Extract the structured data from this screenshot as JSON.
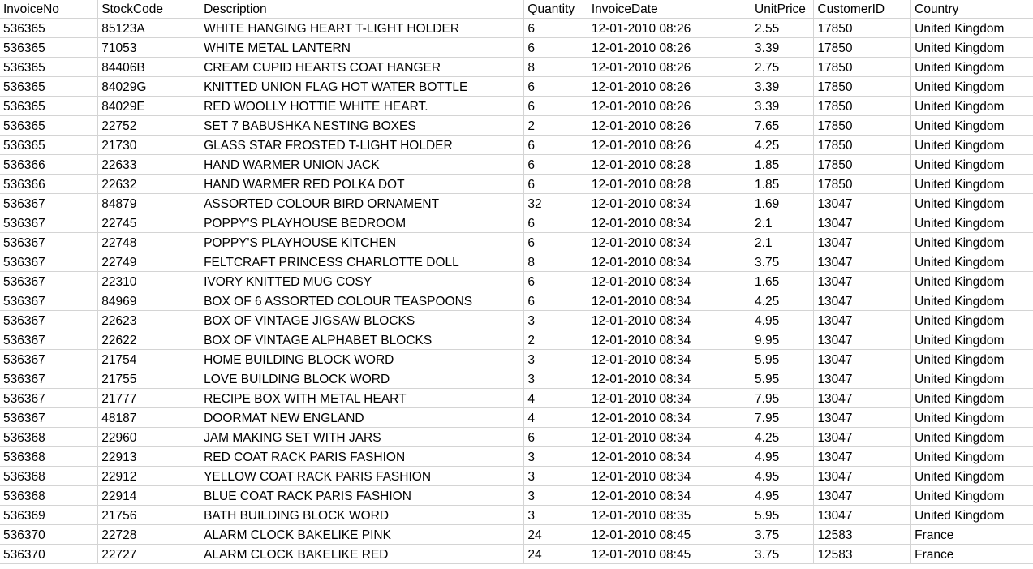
{
  "columns": [
    "InvoiceNo",
    "StockCode",
    "Description",
    "Quantity",
    "InvoiceDate",
    "UnitPrice",
    "CustomerID",
    "Country"
  ],
  "rows": [
    [
      "536365",
      "85123A",
      "WHITE HANGING HEART T-LIGHT HOLDER",
      "6",
      "12-01-2010 08:26",
      "2.55",
      "17850",
      "United Kingdom"
    ],
    [
      "536365",
      "71053",
      "WHITE METAL LANTERN",
      "6",
      "12-01-2010 08:26",
      "3.39",
      "17850",
      "United Kingdom"
    ],
    [
      "536365",
      "84406B",
      "CREAM CUPID HEARTS COAT HANGER",
      "8",
      "12-01-2010 08:26",
      "2.75",
      "17850",
      "United Kingdom"
    ],
    [
      "536365",
      "84029G",
      "KNITTED UNION FLAG HOT WATER BOTTLE",
      "6",
      "12-01-2010 08:26",
      "3.39",
      "17850",
      "United Kingdom"
    ],
    [
      "536365",
      "84029E",
      "RED WOOLLY HOTTIE WHITE HEART.",
      "6",
      "12-01-2010 08:26",
      "3.39",
      "17850",
      "United Kingdom"
    ],
    [
      "536365",
      "22752",
      "SET 7 BABUSHKA NESTING BOXES",
      "2",
      "12-01-2010 08:26",
      "7.65",
      "17850",
      "United Kingdom"
    ],
    [
      "536365",
      "21730",
      "GLASS STAR FROSTED T-LIGHT HOLDER",
      "6",
      "12-01-2010 08:26",
      "4.25",
      "17850",
      "United Kingdom"
    ],
    [
      "536366",
      "22633",
      "HAND WARMER UNION JACK",
      "6",
      "12-01-2010 08:28",
      "1.85",
      "17850",
      "United Kingdom"
    ],
    [
      "536366",
      "22632",
      "HAND WARMER RED POLKA DOT",
      "6",
      "12-01-2010 08:28",
      "1.85",
      "17850",
      "United Kingdom"
    ],
    [
      "536367",
      "84879",
      "ASSORTED COLOUR BIRD ORNAMENT",
      "32",
      "12-01-2010 08:34",
      "1.69",
      "13047",
      "United Kingdom"
    ],
    [
      "536367",
      "22745",
      "POPPY'S PLAYHOUSE BEDROOM",
      "6",
      "12-01-2010 08:34",
      "2.1",
      "13047",
      "United Kingdom"
    ],
    [
      "536367",
      "22748",
      "POPPY'S PLAYHOUSE KITCHEN",
      "6",
      "12-01-2010 08:34",
      "2.1",
      "13047",
      "United Kingdom"
    ],
    [
      "536367",
      "22749",
      "FELTCRAFT PRINCESS CHARLOTTE DOLL",
      "8",
      "12-01-2010 08:34",
      "3.75",
      "13047",
      "United Kingdom"
    ],
    [
      "536367",
      "22310",
      "IVORY KNITTED MUG COSY",
      "6",
      "12-01-2010 08:34",
      "1.65",
      "13047",
      "United Kingdom"
    ],
    [
      "536367",
      "84969",
      "BOX OF 6 ASSORTED COLOUR TEASPOONS",
      "6",
      "12-01-2010 08:34",
      "4.25",
      "13047",
      "United Kingdom"
    ],
    [
      "536367",
      "22623",
      "BOX OF VINTAGE JIGSAW BLOCKS",
      "3",
      "12-01-2010 08:34",
      "4.95",
      "13047",
      "United Kingdom"
    ],
    [
      "536367",
      "22622",
      "BOX OF VINTAGE ALPHABET BLOCKS",
      "2",
      "12-01-2010 08:34",
      "9.95",
      "13047",
      "United Kingdom"
    ],
    [
      "536367",
      "21754",
      "HOME BUILDING BLOCK WORD",
      "3",
      "12-01-2010 08:34",
      "5.95",
      "13047",
      "United Kingdom"
    ],
    [
      "536367",
      "21755",
      "LOVE BUILDING BLOCK WORD",
      "3",
      "12-01-2010 08:34",
      "5.95",
      "13047",
      "United Kingdom"
    ],
    [
      "536367",
      "21777",
      "RECIPE BOX WITH METAL HEART",
      "4",
      "12-01-2010 08:34",
      "7.95",
      "13047",
      "United Kingdom"
    ],
    [
      "536367",
      "48187",
      "DOORMAT NEW ENGLAND",
      "4",
      "12-01-2010 08:34",
      "7.95",
      "13047",
      "United Kingdom"
    ],
    [
      "536368",
      "22960",
      "JAM MAKING SET WITH JARS",
      "6",
      "12-01-2010 08:34",
      "4.25",
      "13047",
      "United Kingdom"
    ],
    [
      "536368",
      "22913",
      "RED COAT RACK PARIS FASHION",
      "3",
      "12-01-2010 08:34",
      "4.95",
      "13047",
      "United Kingdom"
    ],
    [
      "536368",
      "22912",
      "YELLOW COAT RACK PARIS FASHION",
      "3",
      "12-01-2010 08:34",
      "4.95",
      "13047",
      "United Kingdom"
    ],
    [
      "536368",
      "22914",
      "BLUE COAT RACK PARIS FASHION",
      "3",
      "12-01-2010 08:34",
      "4.95",
      "13047",
      "United Kingdom"
    ],
    [
      "536369",
      "21756",
      "BATH BUILDING BLOCK WORD",
      "3",
      "12-01-2010 08:35",
      "5.95",
      "13047",
      "United Kingdom"
    ],
    [
      "536370",
      "22728",
      "ALARM CLOCK BAKELIKE PINK",
      "24",
      "12-01-2010 08:45",
      "3.75",
      "12583",
      "France"
    ],
    [
      "536370",
      "22727",
      "ALARM CLOCK BAKELIKE RED",
      "24",
      "12-01-2010 08:45",
      "3.75",
      "12583",
      "France"
    ]
  ],
  "colors": {
    "gridline": "#d4d4d4",
    "background": "#ffffff",
    "text": "#000000"
  }
}
